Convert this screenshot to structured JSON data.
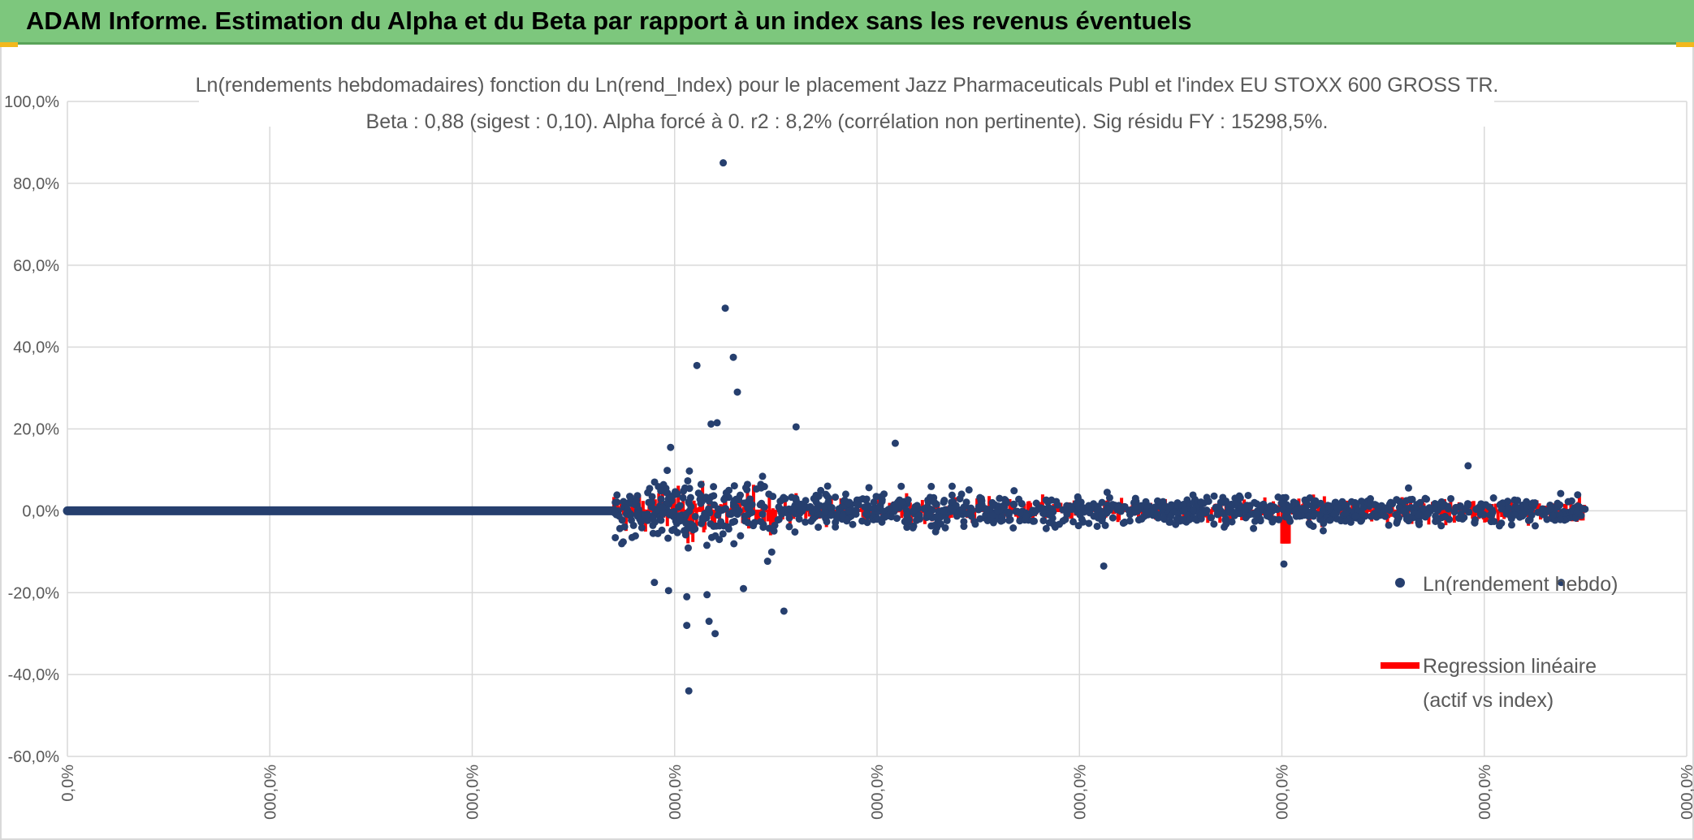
{
  "header": {
    "title": "ADAM Informe. Estimation du Alpha et du Beta par rapport à un index sans les revenus éventuels"
  },
  "colors": {
    "header_bg": "#7dc77d",
    "points": "#263f6e",
    "regression": "#ff0000",
    "grid": "#d9d9d9",
    "text": "#595959"
  },
  "chart_data": {
    "type": "scatter",
    "title": "Ln(rendements hebdomadaires) fonction du Ln(rend_Index) pour le placement Jazz Pharmaceuticals Publ et l'index EU STOXX 600 GROSS TR.",
    "subtitle": "Beta : 0,88 (sigest : 0,10). Alpha forcé à 0. r2 : 8,2% (corrélation non pertinente). Sig résidu FY : 15298,5%.",
    "ylim": [
      -60,
      100
    ],
    "y_ticks": [
      "100,0%",
      "80,0%",
      "60,0%",
      "40,0%",
      "20,0%",
      "0,0%",
      "-20,0%",
      "-40,0%",
      "-60,0%"
    ],
    "x_ticks": [
      "0,0%",
      "000,0%",
      "000,0%",
      "000,0%",
      "000,0%",
      "000,0%",
      "000,0%",
      "000,0%",
      "000,0%"
    ],
    "xlim": [
      0,
      8
    ],
    "gridlines": true,
    "legend_position": "right",
    "series": [
      {
        "name": "Ln(rendement hebdo)",
        "kind": "points",
        "flat_segment_range": [
          0,
          2.7
        ],
        "flat_value": 0,
        "dense_range": [
          2.7,
          7.5
        ],
        "notable_points": [
          {
            "x": 3.24,
            "y": 85
          },
          {
            "x": 3.25,
            "y": 49.5
          },
          {
            "x": 3.29,
            "y": 37.5
          },
          {
            "x": 3.11,
            "y": 35.5
          },
          {
            "x": 3.31,
            "y": 29
          },
          {
            "x": 3.21,
            "y": 21.5
          },
          {
            "x": 3.18,
            "y": 21.2
          },
          {
            "x": 3.6,
            "y": 20.5
          },
          {
            "x": 4.09,
            "y": 16.5
          },
          {
            "x": 2.98,
            "y": 15.5
          },
          {
            "x": 3.07,
            "y": -44
          },
          {
            "x": 3.2,
            "y": -30
          },
          {
            "x": 3.06,
            "y": -28
          },
          {
            "x": 3.17,
            "y": -27
          },
          {
            "x": 3.54,
            "y": -24.5
          },
          {
            "x": 3.16,
            "y": -20.5
          },
          {
            "x": 3.06,
            "y": -21
          },
          {
            "x": 2.97,
            "y": -19.5
          },
          {
            "x": 3.34,
            "y": -19
          },
          {
            "x": 2.9,
            "y": -17.5
          },
          {
            "x": 6.01,
            "y": -13
          },
          {
            "x": 5.12,
            "y": -13.5
          },
          {
            "x": 7.38,
            "y": -17.5
          },
          {
            "x": 6.92,
            "y": 11
          }
        ]
      },
      {
        "name": "Regression linéaire (actif vs index)",
        "kind": "line",
        "range": [
          2.7,
          7.5
        ],
        "typical_amplitude": 5
      }
    ],
    "legend": [
      "Ln(rendement hebdo)",
      "Regression linéaire",
      "(actif vs index)"
    ]
  }
}
